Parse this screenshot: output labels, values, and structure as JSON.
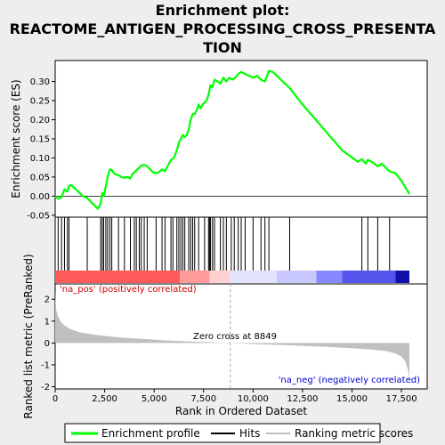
{
  "title_lines": [
    "Enrichment plot:",
    "REACTOME_ANTIGEN_PROCESSING_CROSS_PRESENTA",
    "TION"
  ],
  "colors": {
    "es_line": "#00ff00",
    "hits": "#000000",
    "metric_fill": "#c0c0c0",
    "pos_label": "#cc0000",
    "neg_label": "#0000cc",
    "zero_cross_line": "#a0a0a0",
    "background": "#ffffff",
    "figure_bg": "#eeeeee"
  },
  "chart_data": [
    {
      "type": "line",
      "name": "enrichment-score-panel",
      "ylabel": "Enrichment score (ES)",
      "xlim": [
        0,
        18800
      ],
      "ylim": [
        -0.055,
        0.355
      ],
      "yticks": [
        -0.05,
        0.0,
        0.05,
        0.1,
        0.15,
        0.2,
        0.25,
        0.3
      ],
      "ytick_labels": [
        "-0.05",
        "0.00",
        "0.05",
        "0.10",
        "0.15",
        "0.20",
        "0.25",
        "0.30"
      ],
      "grid": false,
      "series": [
        {
          "name": "Enrichment profile",
          "x": [
            0,
            150,
            320,
            470,
            620,
            700,
            830,
            1000,
            1200,
            1400,
            1620,
            1800,
            2000,
            2150,
            2300,
            2380,
            2450,
            2560,
            2650,
            2760,
            2860,
            3000,
            3200,
            3350,
            3500,
            3650,
            3800,
            3900,
            4000,
            4150,
            4250,
            4350,
            4500,
            4650,
            4800,
            4950,
            5100,
            5250,
            5400,
            5550,
            5700,
            5850,
            6000,
            6150,
            6250,
            6350,
            6450,
            6550,
            6650,
            6750,
            6850,
            6950,
            7050,
            7150,
            7250,
            7350,
            7450,
            7550,
            7650,
            7750,
            7850,
            7950,
            8050,
            8200,
            8350,
            8500,
            8650,
            8800,
            8950,
            9100,
            9250,
            9400,
            9600,
            9800,
            10000,
            10200,
            10400,
            10600,
            10800,
            11000,
            11500,
            11850,
            12500,
            13500,
            14500,
            15300,
            15500,
            15700,
            15800,
            16000,
            16300,
            16500,
            16800,
            16900,
            17200,
            17500,
            17900
          ],
          "values": [
            0.0,
            -0.007,
            -0.003,
            0.018,
            0.012,
            0.028,
            0.028,
            0.02,
            0.01,
            0.0,
            -0.005,
            -0.015,
            -0.025,
            -0.033,
            -0.02,
            0.008,
            0.0,
            0.025,
            0.05,
            0.07,
            0.068,
            0.058,
            0.055,
            0.05,
            0.048,
            0.05,
            0.046,
            0.058,
            0.062,
            0.07,
            0.075,
            0.08,
            0.082,
            0.078,
            0.07,
            0.062,
            0.06,
            0.063,
            0.07,
            0.065,
            0.08,
            0.095,
            0.1,
            0.12,
            0.14,
            0.15,
            0.16,
            0.155,
            0.16,
            0.175,
            0.2,
            0.215,
            0.215,
            0.225,
            0.24,
            0.23,
            0.24,
            0.245,
            0.25,
            0.265,
            0.29,
            0.285,
            0.305,
            0.3,
            0.295,
            0.31,
            0.3,
            0.31,
            0.305,
            0.31,
            0.32,
            0.325,
            0.32,
            0.315,
            0.31,
            0.315,
            0.305,
            0.3,
            0.328,
            0.325,
            0.3,
            0.283,
            0.24,
            0.18,
            0.12,
            0.09,
            0.097,
            0.085,
            0.095,
            0.09,
            0.078,
            0.085,
            0.07,
            0.065,
            0.06,
            0.04,
            0.005
          ]
        }
      ]
    },
    {
      "type": "scatter",
      "name": "hits-panel",
      "xlim": [
        0,
        18800
      ],
      "hit_positions": [
        150,
        320,
        470,
        620,
        700,
        1620,
        2300,
        2380,
        2450,
        2560,
        2650,
        2760,
        2860,
        3200,
        3500,
        3800,
        4000,
        4100,
        4250,
        4350,
        4500,
        4650,
        5100,
        5400,
        5550,
        5850,
        5950,
        6150,
        6250,
        6350,
        6450,
        6550,
        6750,
        6850,
        6950,
        7050,
        7250,
        7550,
        7750,
        7800,
        7850,
        7950,
        8050,
        8350,
        8500,
        8650,
        8900,
        9050,
        9250,
        9400,
        9600,
        10000,
        10400,
        10600,
        10800,
        11850,
        15500,
        15800,
        16300,
        16900
      ],
      "heatmap_bands": [
        {
          "from": 0,
          "to": 6300,
          "color": "#ff5a5a"
        },
        {
          "from": 6300,
          "to": 7800,
          "color": "#ff9a9a"
        },
        {
          "from": 7800,
          "to": 8850,
          "color": "#ffd0d0"
        },
        {
          "from": 8850,
          "to": 11200,
          "color": "#e4e4ff"
        },
        {
          "from": 11200,
          "to": 13200,
          "color": "#c8c8ff"
        },
        {
          "from": 13200,
          "to": 14500,
          "color": "#8888ff"
        },
        {
          "from": 14500,
          "to": 17200,
          "color": "#5555ee"
        },
        {
          "from": 17200,
          "to": 17900,
          "color": "#1010aa"
        }
      ]
    },
    {
      "type": "area",
      "name": "ranked-metric-panel",
      "ylabel": "Ranked list metric (PreRanked)",
      "xlabel": "Rank in Ordered Dataset",
      "xlim": [
        0,
        18800
      ],
      "ylim": [
        -2.1,
        2.7
      ],
      "xticks": [
        0,
        2500,
        5000,
        7500,
        10000,
        12500,
        15000,
        17500
      ],
      "xtick_labels": [
        "0",
        "2,500",
        "5,000",
        "7,500",
        "10,000",
        "12,500",
        "15,000",
        "17,500"
      ],
      "yticks": [
        -2,
        -1,
        0,
        1,
        2
      ],
      "ytick_labels": [
        "-2",
        "-1",
        "0",
        "1",
        "2"
      ],
      "zero_cross_rank": 8849,
      "series": [
        {
          "name": "Ranking metric scores",
          "x": [
            0,
            20,
            60,
            150,
            300,
            500,
            800,
            1200,
            1800,
            2500,
            3500,
            4500,
            5500,
            6500,
            7500,
            8849,
            10000,
            11000,
            12000,
            13000,
            14000,
            15000,
            16000,
            16800,
            17200,
            17500,
            17700,
            17850,
            17900
          ],
          "values": [
            2.4,
            1.9,
            1.5,
            1.2,
            0.95,
            0.78,
            0.62,
            0.5,
            0.4,
            0.32,
            0.24,
            0.18,
            0.12,
            0.08,
            0.04,
            0.0,
            -0.05,
            -0.08,
            -0.11,
            -0.15,
            -0.19,
            -0.24,
            -0.3,
            -0.38,
            -0.48,
            -0.62,
            -0.85,
            -1.3,
            -1.85
          ]
        }
      ]
    }
  ],
  "annotations": {
    "pos_label": "'na_pos' (positively correlated)",
    "neg_label": "'na_neg' (negatively correlated)",
    "zero_cross": "Zero cross at 8849"
  },
  "legend": {
    "placement": "bottom",
    "items": [
      {
        "label": "Enrichment profile",
        "kind": "line-green"
      },
      {
        "label": "Hits",
        "kind": "line-black"
      },
      {
        "label": "Ranking metric scores",
        "kind": "line-gray"
      }
    ]
  }
}
